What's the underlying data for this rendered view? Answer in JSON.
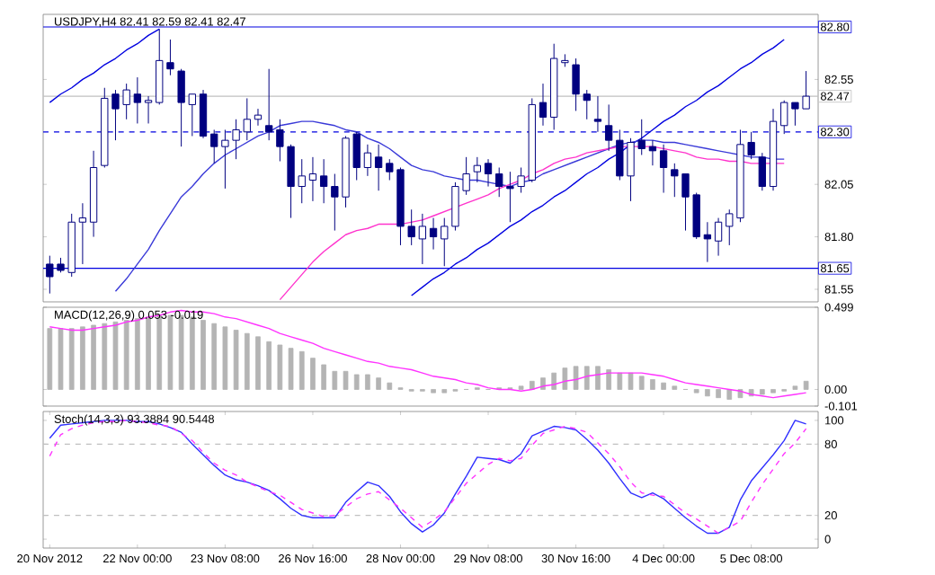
{
  "chart_data": [
    {
      "type": "candlestick",
      "title": "USDJPY,H4 82.41 82.59 82.41 82.47",
      "categories": [
        null,
        null,
        null,
        null,
        null,
        null,
        null,
        null,
        null,
        null,
        null,
        null,
        null,
        null,
        null,
        null,
        null,
        null,
        null,
        null,
        null,
        null,
        null,
        null,
        null,
        null,
        null,
        null,
        null,
        null,
        null,
        null,
        null,
        null,
        null,
        null,
        null,
        null,
        null,
        null,
        null,
        null,
        null,
        null,
        null,
        null,
        null,
        null,
        null,
        null,
        null,
        null,
        null,
        null,
        null,
        null,
        null,
        null,
        null,
        null,
        null,
        null,
        null,
        null,
        null,
        null,
        null,
        null,
        null,
        null
      ],
      "ohlc": [
        [
          81.67,
          81.71,
          81.53,
          81.61
        ],
        [
          81.67,
          81.7,
          81.63,
          81.64
        ],
        [
          81.63,
          81.91,
          81.61,
          81.87
        ],
        [
          81.87,
          81.96,
          81.67,
          81.89
        ],
        [
          81.87,
          82.21,
          81.8,
          82.13
        ],
        [
          82.14,
          82.51,
          82.13,
          82.46
        ],
        [
          82.48,
          82.5,
          82.26,
          82.41
        ],
        [
          82.43,
          82.53,
          82.36,
          82.5
        ],
        [
          82.48,
          82.56,
          82.34,
          82.44
        ],
        [
          82.44,
          82.47,
          82.34,
          82.45
        ],
        [
          82.44,
          82.79,
          82.43,
          82.64
        ],
        [
          82.63,
          82.74,
          82.57,
          82.6
        ],
        [
          82.59,
          82.6,
          82.23,
          82.44
        ],
        [
          82.43,
          82.48,
          82.28,
          82.48
        ],
        [
          82.48,
          82.5,
          82.27,
          82.28
        ],
        [
          82.29,
          82.31,
          82.15,
          82.23
        ],
        [
          82.23,
          82.31,
          82.03,
          82.26
        ],
        [
          82.26,
          82.36,
          82.17,
          82.31
        ],
        [
          82.3,
          82.46,
          82.26,
          82.36
        ],
        [
          82.36,
          82.41,
          82.33,
          82.38
        ],
        [
          82.33,
          82.6,
          82.26,
          82.3
        ],
        [
          82.31,
          82.36,
          82.16,
          82.23
        ],
        [
          82.23,
          82.24,
          81.89,
          82.04
        ],
        [
          82.04,
          82.17,
          81.96,
          82.09
        ],
        [
          82.07,
          82.18,
          81.97,
          82.1
        ],
        [
          82.09,
          82.17,
          81.96,
          82.04
        ],
        [
          82.04,
          82.1,
          81.83,
          81.99
        ],
        [
          81.99,
          82.28,
          81.94,
          82.27
        ],
        [
          82.29,
          82.3,
          82.07,
          82.13
        ],
        [
          82.13,
          82.24,
          82.09,
          82.2
        ],
        [
          82.18,
          82.24,
          82.02,
          82.13
        ],
        [
          82.15,
          82.17,
          82.07,
          82.11
        ],
        [
          82.12,
          82.13,
          81.76,
          81.85
        ],
        [
          81.85,
          81.93,
          81.76,
          81.8
        ],
        [
          81.79,
          81.91,
          81.67,
          81.85
        ],
        [
          81.84,
          81.89,
          81.74,
          81.8
        ],
        [
          81.79,
          81.89,
          81.66,
          81.85
        ],
        [
          81.85,
          82.06,
          81.83,
          82.04
        ],
        [
          82.02,
          82.18,
          82.0,
          82.1
        ],
        [
          82.11,
          82.18,
          82.06,
          82.14
        ],
        [
          82.15,
          82.17,
          82.04,
          82.1
        ],
        [
          82.1,
          82.13,
          81.99,
          82.04
        ],
        [
          82.04,
          82.11,
          81.87,
          82.03
        ],
        [
          82.04,
          82.13,
          82.01,
          82.09
        ],
        [
          82.07,
          82.46,
          82.06,
          82.43
        ],
        [
          82.44,
          82.53,
          82.33,
          82.37
        ],
        [
          82.37,
          82.72,
          82.31,
          82.65
        ],
        [
          82.63,
          82.67,
          82.61,
          82.64
        ],
        [
          82.62,
          82.65,
          82.4,
          82.48
        ],
        [
          82.48,
          82.5,
          82.36,
          82.45
        ],
        [
          82.36,
          82.47,
          82.3,
          82.35
        ],
        [
          82.33,
          82.43,
          82.21,
          82.26
        ],
        [
          82.26,
          82.31,
          82.07,
          82.09
        ],
        [
          82.09,
          82.27,
          81.97,
          82.25
        ],
        [
          82.26,
          82.36,
          82.19,
          82.22
        ],
        [
          82.23,
          82.26,
          82.14,
          82.21
        ],
        [
          82.21,
          82.24,
          82.01,
          82.13
        ],
        [
          82.12,
          82.15,
          81.99,
          82.09
        ],
        [
          82.1,
          82.1,
          81.83,
          81.99
        ],
        [
          82.0,
          82.01,
          81.79,
          81.8
        ],
        [
          81.81,
          81.87,
          81.68,
          81.79
        ],
        [
          81.78,
          81.89,
          81.71,
          81.87
        ],
        [
          81.85,
          81.93,
          81.76,
          81.91
        ],
        [
          81.89,
          82.31,
          81.87,
          82.24
        ],
        [
          82.25,
          82.3,
          82.17,
          82.19
        ],
        [
          82.18,
          82.2,
          82.02,
          82.04
        ],
        [
          82.04,
          82.41,
          82.02,
          82.35
        ],
        [
          82.33,
          82.45,
          82.29,
          82.44
        ],
        [
          82.44,
          82.44,
          82.33,
          82.41
        ],
        [
          82.41,
          82.59,
          82.41,
          82.47
        ]
      ],
      "series": [
        {
          "type": "line",
          "color": "#0000e0",
          "values": [
            82.44,
            82.48,
            82.51,
            82.55,
            82.58,
            82.62,
            82.65,
            82.69,
            82.72,
            82.76,
            82.79,
            null,
            null,
            null,
            null,
            null,
            null,
            null,
            null,
            null,
            null,
            null,
            null,
            null,
            null,
            null,
            null,
            null,
            null,
            null,
            null,
            null,
            null,
            null,
            null,
            null,
            null,
            null,
            null,
            null,
            null,
            null,
            null,
            null,
            null,
            null,
            null,
            null,
            null,
            null,
            null,
            null,
            null,
            null,
            null,
            null,
            null,
            null,
            null,
            null,
            null,
            null,
            null,
            null,
            null,
            null,
            null,
            null,
            null,
            null
          ]
        },
        {
          "type": "line",
          "color": "#0000e0",
          "values": [
            null,
            null,
            null,
            null,
            null,
            null,
            null,
            null,
            null,
            null,
            null,
            null,
            null,
            null,
            null,
            null,
            null,
            null,
            null,
            null,
            null,
            null,
            null,
            null,
            null,
            null,
            null,
            null,
            null,
            null,
            null,
            null,
            null,
            81.52,
            81.56,
            81.6,
            81.63,
            81.67,
            81.7,
            81.74,
            81.77,
            81.81,
            81.85,
            81.88,
            81.92,
            81.95,
            81.99,
            82.02,
            82.06,
            82.1,
            82.13,
            82.17,
            82.2,
            82.24,
            82.27,
            82.31,
            82.35,
            82.38,
            82.42,
            82.45,
            82.49,
            82.52,
            82.56,
            82.6,
            82.63,
            82.67,
            82.7,
            82.74,
            null,
            null
          ]
        },
        {
          "type": "line",
          "color": "#3a3ad8",
          "values": [
            null,
            null,
            null,
            null,
            null,
            null,
            81.54,
            81.6,
            81.67,
            81.74,
            81.83,
            81.91,
            81.99,
            82.04,
            82.1,
            82.15,
            82.19,
            82.22,
            82.25,
            82.28,
            82.3,
            82.33,
            82.34,
            82.35,
            82.35,
            82.34,
            82.33,
            82.31,
            82.3,
            82.27,
            82.25,
            82.22,
            82.18,
            82.14,
            82.12,
            82.11,
            82.09,
            82.08,
            82.07,
            82.07,
            82.06,
            82.05,
            82.04,
            82.06,
            82.07,
            82.1,
            82.12,
            82.14,
            82.16,
            82.18,
            82.2,
            82.22,
            82.24,
            82.25,
            82.26,
            82.26,
            82.25,
            82.25,
            82.24,
            82.23,
            82.22,
            82.21,
            82.2,
            82.19,
            82.18,
            82.18,
            82.17,
            82.17,
            null,
            null
          ]
        },
        {
          "type": "line",
          "color": "#ff33cc",
          "values": [
            null,
            null,
            null,
            null,
            null,
            null,
            null,
            null,
            null,
            null,
            null,
            null,
            null,
            null,
            null,
            null,
            null,
            null,
            null,
            null,
            null,
            81.5,
            81.56,
            81.62,
            81.68,
            81.73,
            81.77,
            81.81,
            81.83,
            81.84,
            81.86,
            81.86,
            81.86,
            81.87,
            81.88,
            81.9,
            81.92,
            81.94,
            81.96,
            81.98,
            82.0,
            82.03,
            82.05,
            82.07,
            82.1,
            82.12,
            82.15,
            82.17,
            82.18,
            82.2,
            82.21,
            82.22,
            82.23,
            82.23,
            82.23,
            82.23,
            82.22,
            82.21,
            82.2,
            82.18,
            82.17,
            82.17,
            82.16,
            82.16,
            82.15,
            82.15,
            82.15,
            82.15,
            null,
            null
          ]
        }
      ],
      "ylim": [
        81.49,
        82.86
      ],
      "yticks": [
        81.55,
        {
          "value": 81.8,
          "label": "81.80"
        },
        82.05,
        82.55
      ],
      "ref_lines": [
        {
          "axis": "y",
          "value": 82.8,
          "label": "82.80",
          "color": "#0000e0"
        },
        {
          "axis": "y",
          "value": 82.3,
          "label": "82.30",
          "color": "#0000e0",
          "line_style": "dashed"
        },
        {
          "axis": "y",
          "value": 81.65,
          "label": "81.65",
          "color": "#0000e0"
        },
        {
          "axis": "y",
          "value": 82.47,
          "label": "82.47",
          "color": "#c0c0c0"
        }
      ],
      "tick_labels": "y"
    },
    {
      "type": "bar",
      "title": "MACD(12,26,9) 0.053 -0.019",
      "categories": [
        null,
        null,
        null,
        null,
        null,
        null,
        null,
        null,
        null,
        null,
        null,
        null,
        null,
        null,
        null,
        null,
        null,
        null,
        null,
        null,
        null,
        null,
        null,
        null,
        null,
        null,
        null,
        null,
        null,
        null,
        null,
        null,
        null,
        null,
        null,
        null,
        null,
        null,
        null,
        null,
        null,
        null,
        null,
        null,
        null,
        null,
        null,
        null,
        null,
        null,
        null,
        null,
        null,
        null,
        null,
        null,
        null,
        null,
        null,
        null,
        null,
        null,
        null,
        null,
        null,
        null,
        null,
        null,
        null,
        null
      ],
      "series": [
        {
          "type": "bar",
          "color": "#b4b4b4",
          "values": [
            0.37,
            0.37,
            0.37,
            0.38,
            0.39,
            0.4,
            0.41,
            0.42,
            0.43,
            0.44,
            0.45,
            0.45,
            0.45,
            0.44,
            0.42,
            0.4,
            0.38,
            0.36,
            0.34,
            0.32,
            0.29,
            0.27,
            0.25,
            0.23,
            0.19,
            0.15,
            0.11,
            0.11,
            0.09,
            0.09,
            0.07,
            0.04,
            0.01,
            -0.01,
            -0.01,
            -0.02,
            -0.02,
            -0.01,
            0.0,
            0.01,
            0.0,
            0.01,
            0.01,
            0.02,
            0.05,
            0.07,
            0.1,
            0.13,
            0.14,
            0.14,
            0.14,
            0.12,
            0.1,
            0.1,
            0.08,
            0.06,
            0.04,
            0.02,
            0.0,
            -0.02,
            -0.04,
            -0.05,
            -0.06,
            -0.05,
            -0.04,
            -0.03,
            -0.02,
            -0.01,
            0.02,
            0.05
          ]
        },
        {
          "type": "line",
          "color": "#ff33ff",
          "values": [
            0.38,
            0.37,
            0.36,
            0.36,
            0.37,
            0.38,
            0.39,
            0.41,
            0.42,
            0.44,
            0.45,
            0.47,
            0.48,
            0.47,
            0.47,
            0.46,
            0.44,
            0.43,
            0.41,
            0.39,
            0.37,
            0.34,
            0.32,
            0.3,
            0.28,
            0.25,
            0.23,
            0.21,
            0.19,
            0.17,
            0.16,
            0.14,
            0.13,
            0.12,
            0.1,
            0.08,
            0.07,
            0.06,
            0.04,
            0.03,
            0.01,
            0.0,
            0.0,
            -0.01,
            0.0,
            0.02,
            0.03,
            0.05,
            0.06,
            0.08,
            0.09,
            0.1,
            0.1,
            0.1,
            0.1,
            0.09,
            0.08,
            0.06,
            0.04,
            0.03,
            0.02,
            0.01,
            0.0,
            -0.01,
            -0.03,
            -0.04,
            -0.05,
            -0.04,
            -0.03,
            -0.02
          ]
        }
      ],
      "ylim": [
        -0.101,
        0.499
      ],
      "yticks": [
        -0.101,
        {
          "value": 0,
          "label": "0.00"
        },
        0.499
      ],
      "tick_labels": "y"
    },
    {
      "type": "line",
      "title": "Stoch(14,3,3) 93.3884 90.5448",
      "categories": [
        "20 Nov 2012",
        null,
        null,
        null,
        null,
        null,
        null,
        null,
        "22 Nov 00:00",
        null,
        null,
        null,
        null,
        null,
        null,
        null,
        "23 Nov 08:00",
        null,
        null,
        null,
        null,
        null,
        null,
        null,
        "26 Nov 16:00",
        null,
        null,
        null,
        null,
        null,
        null,
        null,
        "28 Nov 00:00",
        null,
        null,
        null,
        null,
        null,
        null,
        null,
        "29 Nov 08:00",
        null,
        null,
        null,
        null,
        null,
        null,
        null,
        "30 Nov 16:00",
        null,
        null,
        null,
        null,
        null,
        null,
        null,
        "4 Dec 00:00",
        null,
        null,
        null,
        null,
        null,
        null,
        null,
        "5 Dec 08:00",
        null,
        null,
        null,
        null,
        null
      ],
      "series": [
        {
          "color": "#3030ff",
          "line_style": "solid",
          "values": [
            85,
            96,
            97,
            98,
            99,
            100,
            100,
            100,
            99,
            99,
            97,
            94,
            90,
            80,
            71,
            62,
            54,
            50,
            48,
            45,
            41,
            34,
            26,
            20,
            18,
            18,
            18,
            31,
            40,
            48,
            45,
            36,
            23,
            13,
            6,
            12,
            22,
            38,
            53,
            69,
            68,
            67,
            64,
            72,
            87,
            91,
            95,
            94,
            92,
            84,
            75,
            64,
            51,
            39,
            35,
            39,
            34,
            26,
            18,
            11,
            5,
            5,
            10,
            33,
            49,
            60,
            71,
            83,
            100,
            97
          ]
        },
        {
          "color": "#ff33ff",
          "line_style": "dashed",
          "values": [
            70,
            88,
            93,
            96,
            98,
            99,
            99,
            100,
            99,
            98,
            96,
            95,
            89,
            83,
            73,
            64,
            58,
            54,
            48,
            44,
            40,
            37,
            31,
            25,
            22,
            19,
            20,
            27,
            34,
            38,
            40,
            33,
            26,
            18,
            10,
            16,
            23,
            35,
            47,
            55,
            63,
            68,
            66,
            68,
            79,
            89,
            92,
            95,
            93,
            90,
            81,
            72,
            61,
            48,
            39,
            37,
            36,
            29,
            22,
            17,
            11,
            5,
            10,
            15,
            31,
            46,
            59,
            72,
            81,
            93
          ]
        }
      ],
      "ylim": [
        -7.5,
        107.5
      ],
      "yticks": [
        0,
        20,
        80,
        100
      ],
      "ref_lines": [
        {
          "axis": "y",
          "value": 20,
          "color": "#c0c0c0",
          "line_style": "dashed"
        },
        {
          "axis": "y",
          "value": 80,
          "color": "#c0c0c0",
          "line_style": "dashed"
        }
      ]
    }
  ]
}
